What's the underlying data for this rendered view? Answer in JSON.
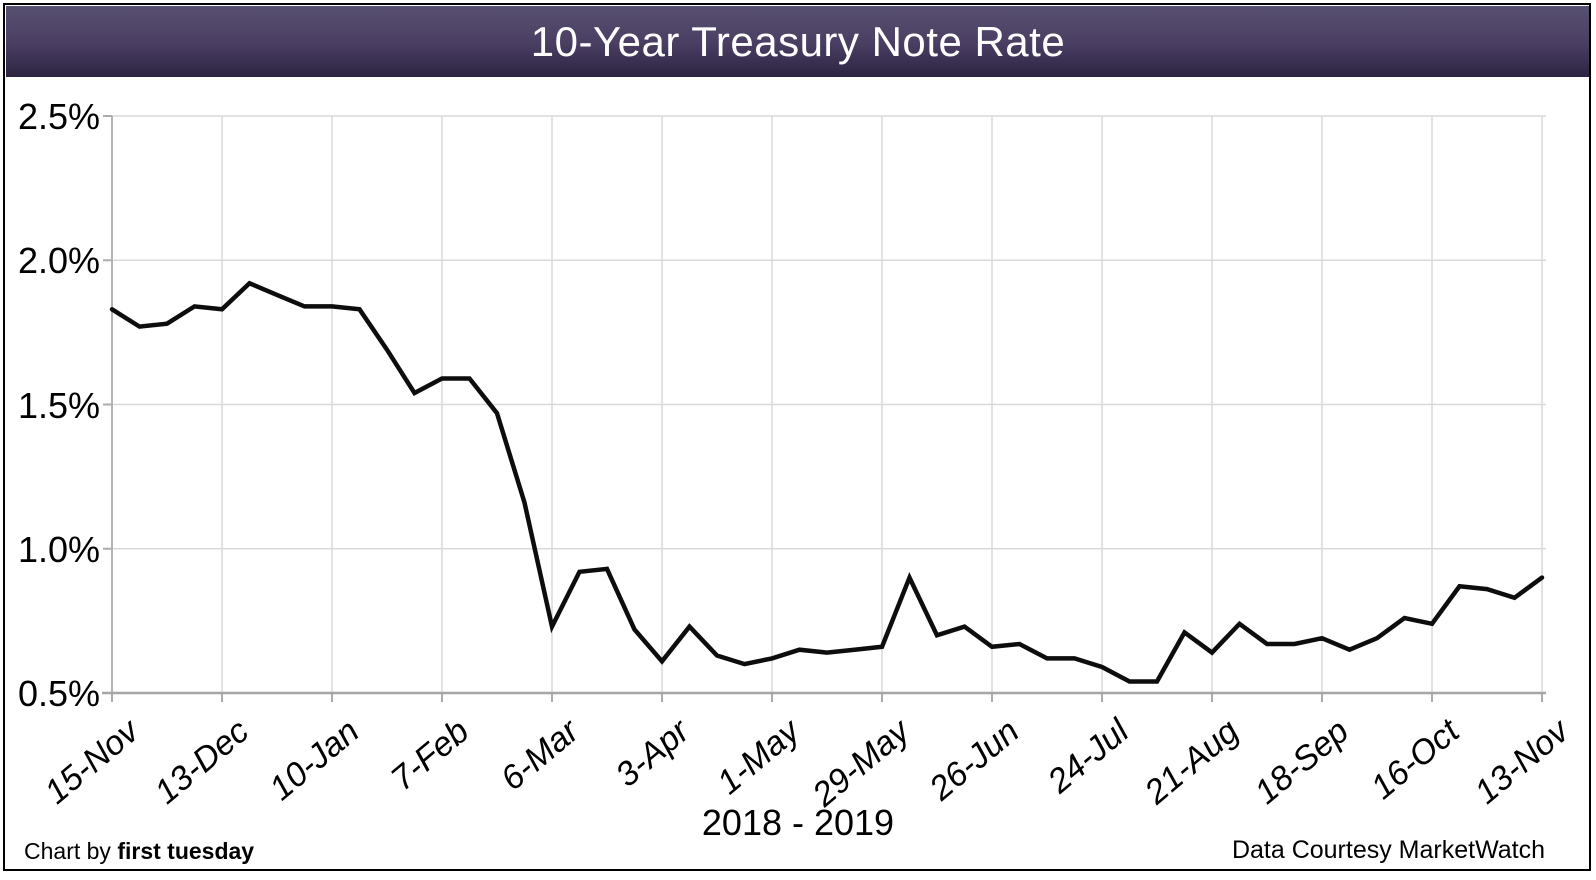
{
  "header": {
    "title": "10-Year Treasury Note Rate"
  },
  "chart_data": {
    "type": "line",
    "title": "10-Year Treasury Note Rate",
    "xlabel": "2018 - 2019",
    "ylabel": "",
    "x_tick_labels": [
      "15-Nov",
      "13-Dec",
      "10-Jan",
      "7-Feb",
      "6-Mar",
      "3-Apr",
      "1-May",
      "29-May",
      "26-Jun",
      "24-Jul",
      "21-Aug",
      "18-Sep",
      "16-Oct",
      "13-Nov"
    ],
    "points_per_tick": 4,
    "series": [
      {
        "name": "10-Year Treasury Note Rate",
        "values": [
          1.83,
          1.77,
          1.78,
          1.84,
          1.83,
          1.92,
          1.88,
          1.84,
          1.84,
          1.83,
          1.69,
          1.54,
          1.59,
          1.59,
          1.47,
          1.16,
          0.73,
          0.92,
          0.93,
          0.72,
          0.61,
          0.73,
          0.63,
          0.6,
          0.62,
          0.65,
          0.64,
          0.65,
          0.66,
          0.9,
          0.7,
          0.73,
          0.66,
          0.67,
          0.62,
          0.62,
          0.59,
          0.54,
          0.54,
          0.71,
          0.64,
          0.74,
          0.67,
          0.67,
          0.69,
          0.65,
          0.69,
          0.76,
          0.74,
          0.87,
          0.86,
          0.83,
          0.9
        ]
      }
    ],
    "ylim": [
      0.5,
      2.5
    ],
    "yticks": [
      0.5,
      1.0,
      1.5,
      2.0,
      2.5
    ],
    "y_tick_labels": [
      "0.5%",
      "1.0%",
      "1.5%",
      "2.0%",
      "2.5%"
    ],
    "grid": true,
    "legend": "none",
    "line_color": "#0d0d0d"
  },
  "footer": {
    "credit_left_prefix": "Chart by ",
    "credit_left_brand": "first tuesday",
    "credit_right": "Data Courtesy MarketWatch"
  },
  "colors": {
    "header_gradient_top": "#585070",
    "header_gradient_bottom": "#2d2342",
    "gridline": "#d9d9d9",
    "axis": "#a6a6a6",
    "tick": "#ababab",
    "line": "#0d0d0d",
    "title_text": "#ffffff"
  }
}
